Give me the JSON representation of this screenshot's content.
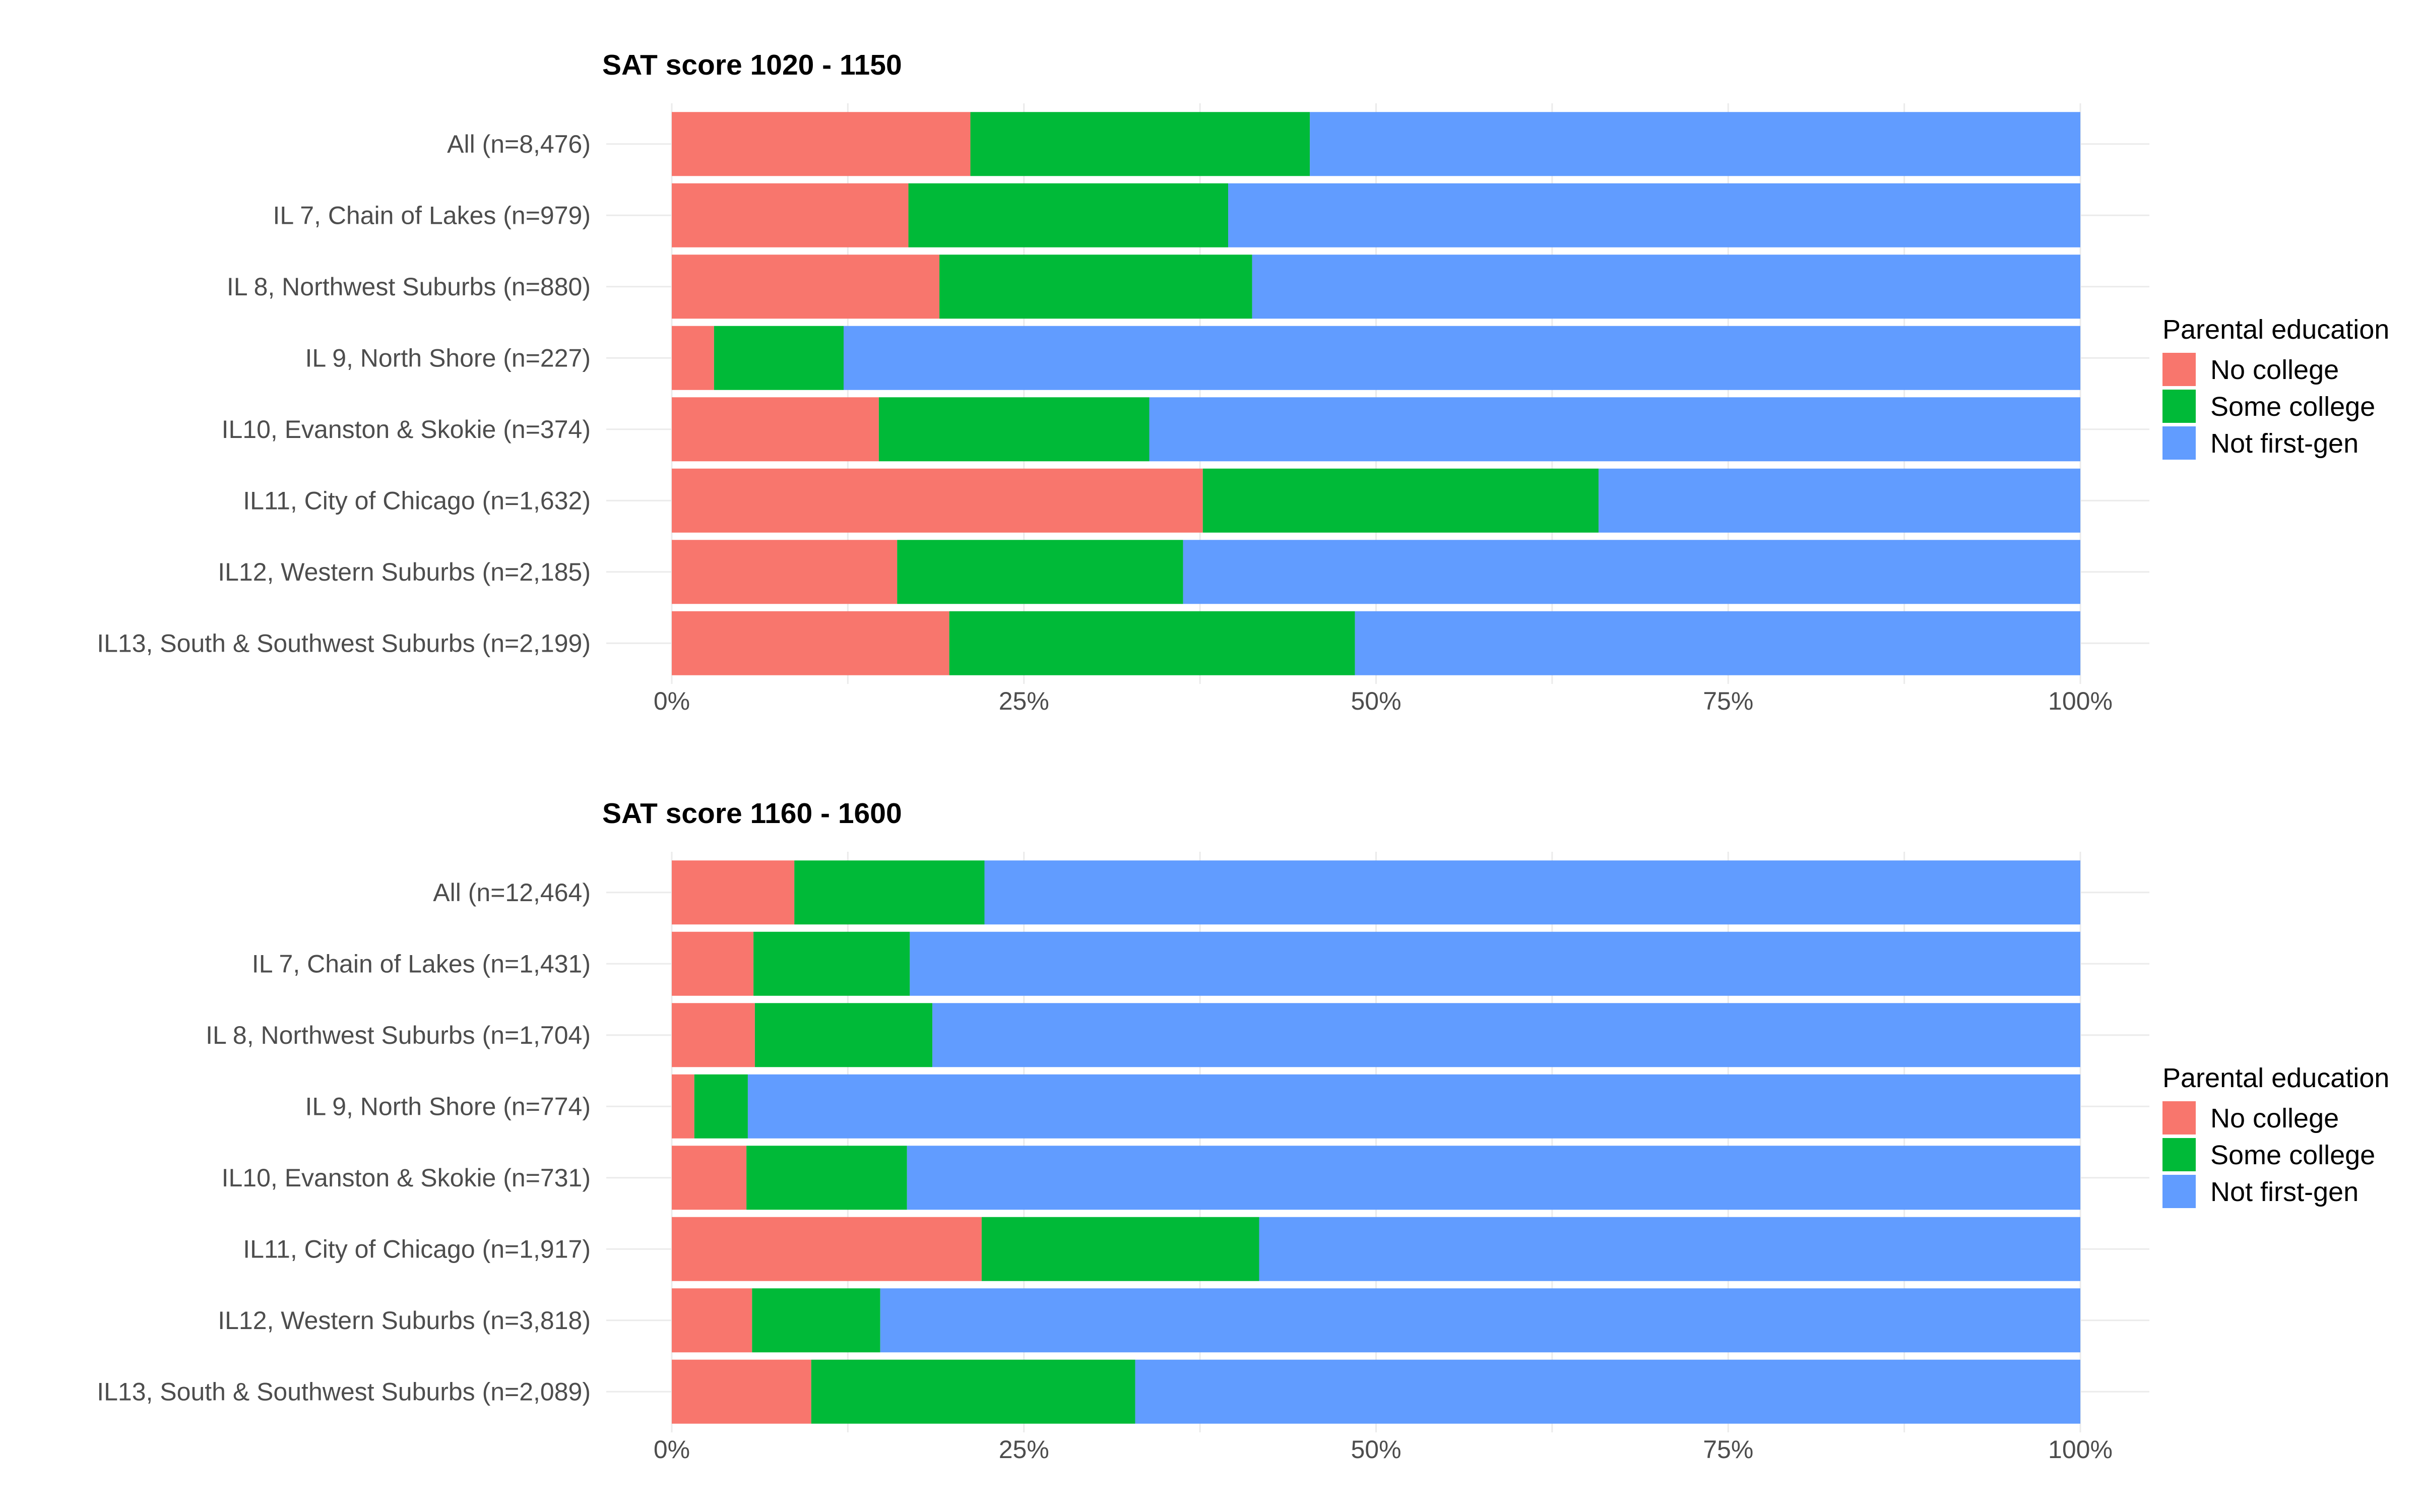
{
  "legend": {
    "title": "Parental education",
    "items": [
      {
        "label": "No college",
        "color": "#F8766D"
      },
      {
        "label": "Some college",
        "color": "#00BA38"
      },
      {
        "label": "Not first-gen",
        "color": "#619CFF"
      }
    ]
  },
  "chart_data": [
    {
      "type": "bar",
      "orientation": "horizontal",
      "stacked": true,
      "title": "SAT score 1020 - 1150",
      "xlabel": "",
      "ylabel": "",
      "xlim": [
        0,
        1
      ],
      "x_ticks": [
        0,
        0.25,
        0.5,
        0.75,
        1
      ],
      "x_tick_labels": [
        "0%",
        "25%",
        "50%",
        "75%",
        "100%"
      ],
      "grid": true,
      "legend_position": "right",
      "categories": [
        "All (n=8,476)",
        "IL 7, Chain of Lakes (n=979)",
        "IL 8, Northwest Suburbs (n=880)",
        "IL 9, North Shore (n=227)",
        "IL10, Evanston & Skokie (n=374)",
        "IL11, City of Chicago (n=1,632)",
        "IL12, Western Suburbs (n=2,185)",
        "IL13, South & Southwest Suburbs (n=2,199)"
      ],
      "series": [
        {
          "name": "No college",
          "values": [
            0.212,
            0.168,
            0.19,
            0.03,
            0.147,
            0.377,
            0.16,
            0.197
          ]
        },
        {
          "name": "Some college",
          "values": [
            0.241,
            0.227,
            0.222,
            0.092,
            0.192,
            0.281,
            0.203,
            0.288
          ]
        },
        {
          "name": "Not first-gen",
          "values": [
            0.547,
            0.605,
            0.588,
            0.878,
            0.661,
            0.342,
            0.637,
            0.515
          ]
        }
      ]
    },
    {
      "type": "bar",
      "orientation": "horizontal",
      "stacked": true,
      "title": "SAT score 1160 - 1600",
      "xlabel": "",
      "ylabel": "",
      "xlim": [
        0,
        1
      ],
      "x_ticks": [
        0,
        0.25,
        0.5,
        0.75,
        1
      ],
      "x_tick_labels": [
        "0%",
        "25%",
        "50%",
        "75%",
        "100%"
      ],
      "grid": true,
      "legend_position": "right",
      "categories": [
        "All (n=12,464)",
        "IL 7, Chain of Lakes (n=1,431)",
        "IL 8, Northwest Suburbs (n=1,704)",
        "IL 9, North Shore (n=774)",
        "IL10, Evanston & Skokie (n=731)",
        "IL11, City of Chicago (n=1,917)",
        "IL12, Western Suburbs (n=3,818)",
        "IL13, South & Southwest Suburbs (n=2,089)"
      ],
      "series": [
        {
          "name": "No college",
          "values": [
            0.087,
            0.058,
            0.059,
            0.016,
            0.053,
            0.22,
            0.057,
            0.099
          ]
        },
        {
          "name": "Some college",
          "values": [
            0.135,
            0.111,
            0.126,
            0.038,
            0.114,
            0.197,
            0.091,
            0.23
          ]
        },
        {
          "name": "Not first-gen",
          "values": [
            0.778,
            0.831,
            0.815,
            0.946,
            0.833,
            0.583,
            0.852,
            0.671
          ]
        }
      ]
    }
  ]
}
